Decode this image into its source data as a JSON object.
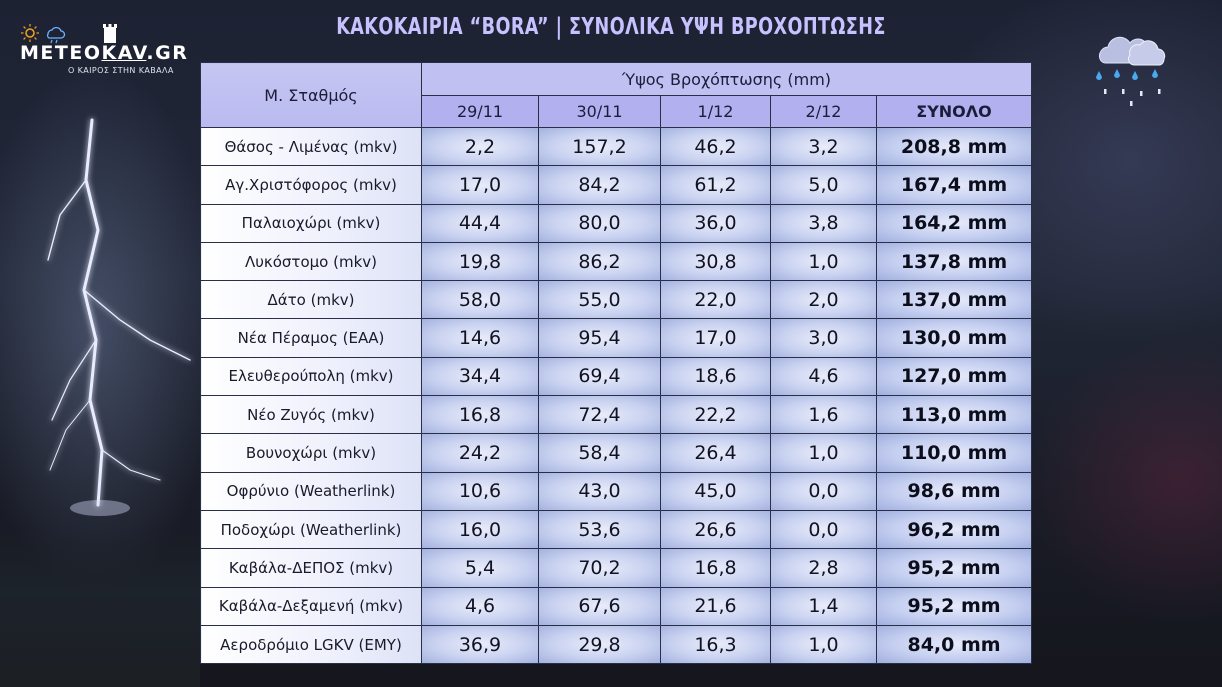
{
  "brand": {
    "name_part1": "METEO",
    "name_part2": "KAV",
    "name_part3": ".GR",
    "tagline": "Ο ΚΑΙΡΟΣ ΣΤΗΝ ΚΑΒΑΛΑ"
  },
  "title": "ΚΑΚΟΚΑΙΡΙΑ “BORA” | ΣΥΝΟΛΙΚΑ ΥΨΗ ΒΡΟΧΟΠΤΩΣΗΣ",
  "table": {
    "station_header": "Μ. Σταθμός",
    "group_header": "Ύψος Βροχόπτωσης (mm)",
    "day_headers": [
      "29/11",
      "30/11",
      "1/12",
      "2/12"
    ],
    "total_header": "ΣΥΝΟΛΟ",
    "rows": [
      {
        "station": "Θάσος - Λιμένας (mkv)",
        "d1": "2,2",
        "d2": "157,2",
        "d3": "46,2",
        "d4": "3,2",
        "total": "208,8 mm"
      },
      {
        "station": "Αγ.Χριστόφορος (mkv)",
        "d1": "17,0",
        "d2": "84,2",
        "d3": "61,2",
        "d4": "5,0",
        "total": "167,4 mm"
      },
      {
        "station": "Παλαιοχώρι (mkv)",
        "d1": "44,4",
        "d2": "80,0",
        "d3": "36,0",
        "d4": "3,8",
        "total": "164,2 mm"
      },
      {
        "station": "Λυκόστομο (mkv)",
        "d1": "19,8",
        "d2": "86,2",
        "d3": "30,8",
        "d4": "1,0",
        "total": "137,8 mm"
      },
      {
        "station": "Δάτο (mkv)",
        "d1": "58,0",
        "d2": "55,0",
        "d3": "22,0",
        "d4": "2,0",
        "total": "137,0 mm"
      },
      {
        "station": "Νέα Πέραμος (ΕΑΑ)",
        "d1": "14,6",
        "d2": "95,4",
        "d3": "17,0",
        "d4": "3,0",
        "total": "130,0 mm"
      },
      {
        "station": "Ελευθερούπολη (mkv)",
        "d1": "34,4",
        "d2": "69,4",
        "d3": "18,6",
        "d4": "4,6",
        "total": "127,0 mm"
      },
      {
        "station": "Νέο Ζυγός (mkv)",
        "d1": "16,8",
        "d2": "72,4",
        "d3": "22,2",
        "d4": "1,6",
        "total": "113,0 mm"
      },
      {
        "station": "Βουνοχώρι (mkv)",
        "d1": "24,2",
        "d2": "58,4",
        "d3": "26,4",
        "d4": "1,0",
        "total": "110,0 mm"
      },
      {
        "station": "Οφρύνιο (Weatherlink)",
        "d1": "10,6",
        "d2": "43,0",
        "d3": "45,0",
        "d4": "0,0",
        "total": "98,6 mm"
      },
      {
        "station": "Ποδοχώρι (Weatherlink)",
        "d1": "16,0",
        "d2": "53,6",
        "d3": "26,6",
        "d4": "0,0",
        "total": "96,2 mm"
      },
      {
        "station": "Καβάλα-ΔΕΠΟΣ (mkv)",
        "d1": "5,4",
        "d2": "70,2",
        "d3": "16,8",
        "d4": "2,8",
        "total": "95,2 mm"
      },
      {
        "station": "Καβάλα-Δεξαμενή (mkv)",
        "d1": "4,6",
        "d2": "67,6",
        "d3": "21,6",
        "d4": "1,4",
        "total": "95,2 mm"
      },
      {
        "station": "Αεροδρόμιο LGKV (ΕΜΥ)",
        "d1": "36,9",
        "d2": "29,8",
        "d3": "16,3",
        "d4": "1,0",
        "total": "84,0 mm"
      }
    ]
  },
  "icons": {
    "logo_icons": [
      "sun-icon",
      "rain-cloud-icon",
      "castle-icon"
    ],
    "corner_icon": "rain-cloud-icon"
  },
  "colors": {
    "title": "#c7c2ff",
    "header_bg": "#b2b0ee",
    "cell_bg": "#c9d2f0",
    "background": "#1d2233"
  }
}
